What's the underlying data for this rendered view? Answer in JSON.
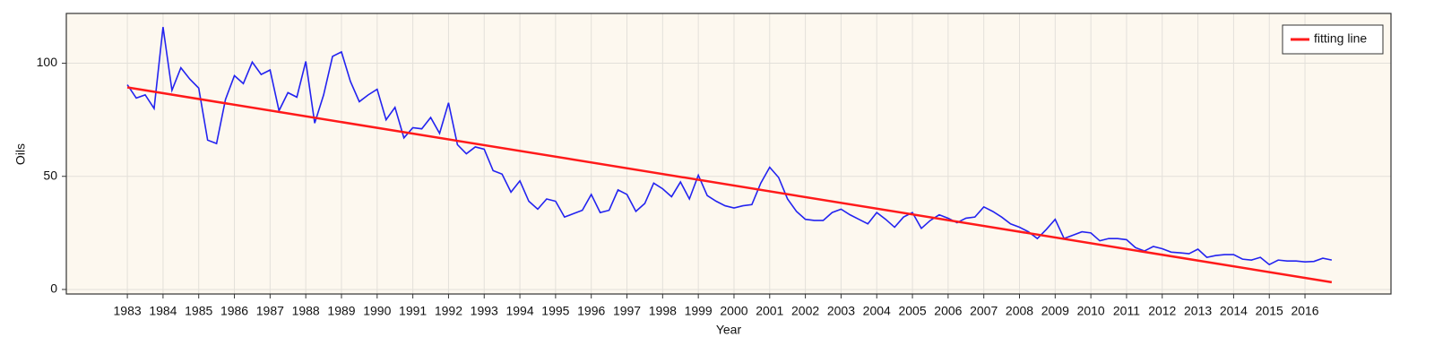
{
  "chart_data": {
    "type": "line",
    "xlabel": "Year",
    "ylabel": "Oils",
    "xlim": [
      1981.29,
      2018.41
    ],
    "ylim": [
      -2,
      122
    ],
    "xticks": [
      1983,
      1984,
      1985,
      1986,
      1987,
      1988,
      1989,
      1990,
      1991,
      1992,
      1993,
      1994,
      1995,
      1996,
      1997,
      1998,
      1999,
      2000,
      2001,
      2002,
      2003,
      2004,
      2005,
      2006,
      2007,
      2008,
      2009,
      2010,
      2011,
      2012,
      2013,
      2014,
      2015,
      2016
    ],
    "yticks": [
      0,
      50,
      100
    ],
    "grid": true,
    "legend": "upper right",
    "series": [
      {
        "color": "#2323f0",
        "x": [
          1983,
          1983.25,
          1983.5,
          1983.75,
          1984,
          1984.25,
          1984.5,
          1984.75,
          1985,
          1985.25,
          1985.5,
          1985.75,
          1986,
          1986.25,
          1986.5,
          1986.75,
          1987,
          1987.25,
          1987.5,
          1987.75,
          1988,
          1988.25,
          1988.5,
          1988.75,
          1989,
          1989.25,
          1989.5,
          1989.75,
          1990,
          1990.25,
          1990.5,
          1990.75,
          1991,
          1991.25,
          1991.5,
          1991.75,
          1992,
          1992.25,
          1992.5,
          1992.75,
          1993,
          1993.25,
          1993.5,
          1993.75,
          1994,
          1994.25,
          1994.5,
          1994.75,
          1995,
          1995.25,
          1995.5,
          1995.75,
          1996,
          1996.25,
          1996.5,
          1996.75,
          1997,
          1997.25,
          1997.5,
          1997.75,
          1998,
          1998.25,
          1998.5,
          1998.75,
          1999,
          1999.25,
          1999.5,
          1999.75,
          2000,
          2000.25,
          2000.5,
          2000.75,
          2001,
          2001.25,
          2001.5,
          2001.75,
          2002,
          2002.25,
          2002.5,
          2002.75,
          2003,
          2003.25,
          2003.5,
          2003.75,
          2004,
          2004.25,
          2004.5,
          2004.75,
          2005,
          2005.25,
          2005.5,
          2005.75,
          2006,
          2006.25,
          2006.5,
          2006.75,
          2007,
          2007.25,
          2007.5,
          2007.75,
          2008,
          2008.25,
          2008.5,
          2008.75,
          2009,
          2009.25,
          2009.5,
          2009.75,
          2010,
          2010.25,
          2010.5,
          2010.75,
          2011,
          2011.25,
          2011.5,
          2011.75,
          2012,
          2012.25,
          2012.5,
          2012.75,
          2013,
          2013.25,
          2013.5,
          2013.75,
          2014,
          2014.25,
          2014.5,
          2014.75,
          2015,
          2015.25,
          2015.5,
          2015.75,
          2016,
          2016.25,
          2016.5,
          2016.75
        ],
        "values": [
          90.5,
          84.6,
          86,
          80,
          116,
          88,
          98,
          93,
          89,
          66,
          64.5,
          84,
          94.5,
          91,
          100.5,
          95,
          97,
          79,
          87,
          85,
          100.8,
          73.5,
          86,
          103,
          105,
          92,
          83,
          86,
          88.5,
          75,
          80.5,
          67,
          71.5,
          71,
          76,
          69,
          82.5,
          64,
          60,
          63,
          62,
          52.5,
          51,
          43,
          48,
          39,
          35.5,
          40,
          39,
          32,
          33.5,
          35,
          42,
          34,
          35,
          44,
          42,
          34.5,
          38,
          47,
          44.5,
          41,
          47.5,
          40,
          50.5,
          41.5,
          39,
          37,
          36,
          37,
          37.5,
          47,
          54,
          49.5,
          40,
          34.5,
          31,
          30.5,
          30.5,
          34,
          35.5,
          33,
          31,
          29,
          34,
          31,
          27.5,
          32,
          34,
          27,
          30.5,
          33,
          31.5,
          29.5,
          31.5,
          32,
          36.5,
          34.5,
          32,
          29,
          27.5,
          25.5,
          22.5,
          26.5,
          31,
          22.5,
          24,
          25.5,
          25,
          21.5,
          22.5,
          22.5,
          22,
          18.5,
          17,
          19,
          18,
          16.5,
          16.2,
          15.8,
          17.8,
          14.2,
          15,
          15.4,
          15.4,
          13.4,
          13,
          14.2,
          11,
          13,
          12.6,
          12.6,
          12.2,
          12.4,
          13.8,
          13
        ]
      },
      {
        "name": "fitting line",
        "color": "#ff1a1a",
        "x": [
          1983,
          2016.75
        ],
        "values": [
          89.3,
          3.2
        ]
      }
    ]
  }
}
